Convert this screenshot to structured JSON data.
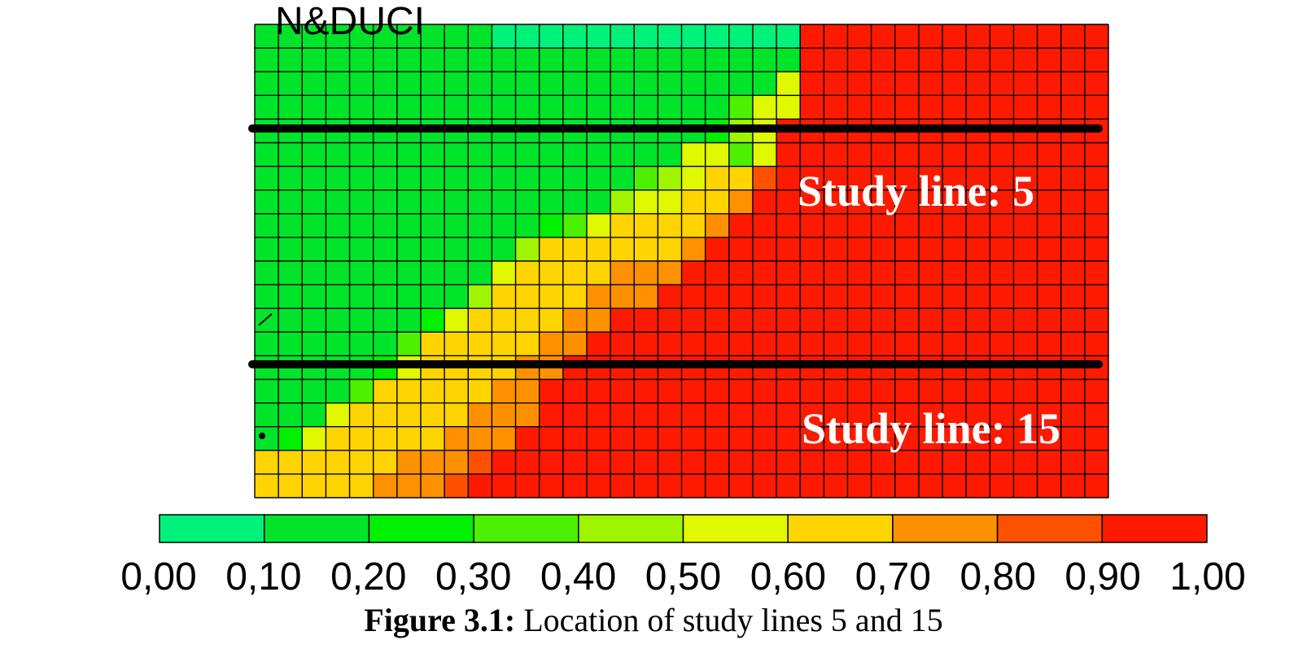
{
  "chart_data": {
    "type": "heatmap",
    "title": "",
    "annotations": [
      "Study line: 5",
      "Study line: 15"
    ],
    "top_label_partial": "N&DUCI",
    "grid_cols": 36,
    "grid_rows": 20,
    "study_line_rows": [
      4.5,
      14.5
    ],
    "cells_row_major": [
      [
        2,
        2,
        2,
        2,
        2,
        2,
        2,
        2,
        2,
        2,
        1,
        1,
        1,
        1,
        1,
        1,
        1,
        1,
        1,
        1,
        1,
        1,
        1,
        10,
        10,
        10,
        10,
        10,
        10,
        10,
        10,
        10,
        10,
        10,
        10,
        10
      ],
      [
        2,
        2,
        2,
        2,
        2,
        2,
        2,
        2,
        2,
        2,
        2,
        2,
        2,
        2,
        2,
        2,
        2,
        2,
        2,
        2,
        2,
        2,
        2,
        10,
        10,
        10,
        10,
        10,
        10,
        10,
        10,
        10,
        10,
        10,
        10,
        10
      ],
      [
        2,
        2,
        2,
        2,
        2,
        2,
        2,
        2,
        2,
        2,
        2,
        2,
        2,
        2,
        2,
        2,
        2,
        2,
        2,
        2,
        2,
        2,
        6,
        10,
        10,
        10,
        10,
        10,
        10,
        10,
        10,
        10,
        10,
        10,
        10,
        10
      ],
      [
        2,
        2,
        2,
        2,
        2,
        2,
        2,
        2,
        2,
        2,
        2,
        2,
        2,
        2,
        2,
        2,
        2,
        2,
        2,
        2,
        4,
        6,
        6,
        10,
        10,
        10,
        10,
        10,
        10,
        10,
        10,
        10,
        10,
        10,
        10,
        10
      ],
      [
        2,
        2,
        2,
        2,
        2,
        2,
        2,
        2,
        2,
        2,
        2,
        2,
        2,
        2,
        2,
        2,
        2,
        2,
        2,
        3,
        5,
        6,
        10,
        10,
        10,
        10,
        10,
        10,
        10,
        10,
        10,
        10,
        10,
        10,
        10,
        10
      ],
      [
        2,
        2,
        2,
        2,
        2,
        2,
        2,
        2,
        2,
        2,
        2,
        2,
        2,
        2,
        2,
        2,
        2,
        2,
        6,
        6,
        4,
        6,
        10,
        10,
        10,
        10,
        10,
        10,
        10,
        10,
        10,
        10,
        10,
        10,
        10,
        10
      ],
      [
        2,
        2,
        2,
        2,
        2,
        2,
        2,
        2,
        2,
        2,
        2,
        2,
        2,
        2,
        2,
        2,
        4,
        5,
        6,
        7,
        7,
        9,
        10,
        10,
        10,
        10,
        10,
        10,
        10,
        10,
        10,
        10,
        10,
        10,
        10,
        10
      ],
      [
        2,
        2,
        2,
        2,
        2,
        2,
        2,
        2,
        2,
        2,
        2,
        2,
        2,
        2,
        2,
        5,
        6,
        6,
        7,
        7,
        8,
        10,
        10,
        10,
        10,
        10,
        10,
        10,
        10,
        10,
        10,
        10,
        10,
        10,
        10,
        10
      ],
      [
        2,
        2,
        2,
        2,
        2,
        2,
        2,
        2,
        2,
        2,
        2,
        2,
        3,
        4,
        6,
        7,
        7,
        7,
        7,
        8,
        10,
        10,
        10,
        10,
        10,
        10,
        10,
        10,
        10,
        10,
        10,
        10,
        10,
        10,
        10,
        10
      ],
      [
        2,
        2,
        2,
        2,
        2,
        2,
        2,
        2,
        2,
        2,
        2,
        5,
        7,
        7,
        7,
        7,
        7,
        7,
        8,
        10,
        10,
        10,
        10,
        10,
        10,
        10,
        10,
        10,
        10,
        10,
        10,
        10,
        10,
        10,
        10,
        10
      ],
      [
        2,
        2,
        2,
        2,
        2,
        2,
        2,
        2,
        2,
        2,
        6,
        7,
        7,
        7,
        7,
        8,
        8,
        8,
        10,
        10,
        10,
        10,
        10,
        10,
        10,
        10,
        10,
        10,
        10,
        10,
        10,
        10,
        10,
        10,
        10,
        10
      ],
      [
        2,
        2,
        2,
        2,
        2,
        2,
        2,
        2,
        2,
        5,
        7,
        7,
        7,
        7,
        8,
        8,
        8,
        10,
        10,
        10,
        10,
        10,
        10,
        10,
        10,
        10,
        10,
        10,
        10,
        10,
        10,
        10,
        10,
        10,
        10,
        10
      ],
      [
        2,
        2,
        2,
        2,
        2,
        2,
        2,
        3,
        6,
        7,
        7,
        7,
        7,
        8,
        8,
        10,
        10,
        10,
        10,
        10,
        10,
        10,
        10,
        10,
        10,
        10,
        10,
        10,
        10,
        10,
        10,
        10,
        10,
        10,
        10,
        10
      ],
      [
        2,
        2,
        2,
        2,
        2,
        2,
        4,
        7,
        7,
        7,
        7,
        7,
        8,
        8,
        10,
        10,
        10,
        10,
        10,
        10,
        10,
        10,
        10,
        10,
        10,
        10,
        10,
        10,
        10,
        10,
        10,
        10,
        10,
        10,
        10,
        10
      ],
      [
        2,
        2,
        2,
        2,
        2,
        3,
        6,
        7,
        7,
        7,
        7,
        8,
        8,
        10,
        10,
        10,
        10,
        10,
        10,
        10,
        10,
        10,
        10,
        10,
        10,
        10,
        10,
        10,
        10,
        10,
        10,
        10,
        10,
        10,
        10,
        10
      ],
      [
        2,
        2,
        2,
        2,
        4,
        7,
        7,
        7,
        7,
        7,
        8,
        8,
        10,
        10,
        10,
        10,
        10,
        10,
        10,
        10,
        10,
        10,
        10,
        10,
        10,
        10,
        10,
        10,
        10,
        10,
        10,
        10,
        10,
        10,
        10,
        10
      ],
      [
        2,
        2,
        2,
        6,
        7,
        7,
        7,
        7,
        7,
        8,
        8,
        8,
        10,
        10,
        10,
        10,
        10,
        10,
        10,
        10,
        10,
        10,
        10,
        10,
        10,
        10,
        10,
        10,
        10,
        10,
        10,
        10,
        10,
        10,
        10,
        10
      ],
      [
        2,
        3,
        6,
        7,
        7,
        7,
        7,
        7,
        8,
        8,
        8,
        10,
        10,
        10,
        10,
        10,
        10,
        10,
        10,
        10,
        10,
        10,
        10,
        10,
        10,
        10,
        10,
        10,
        10,
        10,
        10,
        10,
        10,
        10,
        10,
        10
      ],
      [
        7,
        7,
        7,
        7,
        7,
        7,
        8,
        8,
        8,
        9,
        10,
        10,
        10,
        10,
        10,
        10,
        10,
        10,
        10,
        10,
        10,
        10,
        10,
        10,
        10,
        10,
        10,
        10,
        10,
        10,
        10,
        10,
        10,
        10,
        10,
        10
      ],
      [
        7,
        7,
        7,
        7,
        7,
        8,
        8,
        8,
        9,
        10,
        10,
        10,
        10,
        10,
        10,
        10,
        10,
        10,
        10,
        10,
        10,
        10,
        10,
        10,
        10,
        10,
        10,
        10,
        10,
        10,
        10,
        10,
        10,
        10,
        10,
        10
      ]
    ],
    "colorbar": {
      "min": 0.0,
      "max": 1.0,
      "tick_labels": [
        "0,00",
        "0,10",
        "0,20",
        "0,30",
        "0,40",
        "0,50",
        "0,60",
        "0,70",
        "0,80",
        "0,90",
        "1,00"
      ],
      "bin_colors": [
        "#00f27a",
        "#00e52a",
        "#00f000",
        "#4cf000",
        "#a0f400",
        "#e0f800",
        "#ffd400",
        "#ff9000",
        "#ff5000",
        "#fe1a00"
      ]
    }
  },
  "caption": {
    "label": "Figure 3.1:",
    "text": " Location of study lines 5 and 15"
  }
}
